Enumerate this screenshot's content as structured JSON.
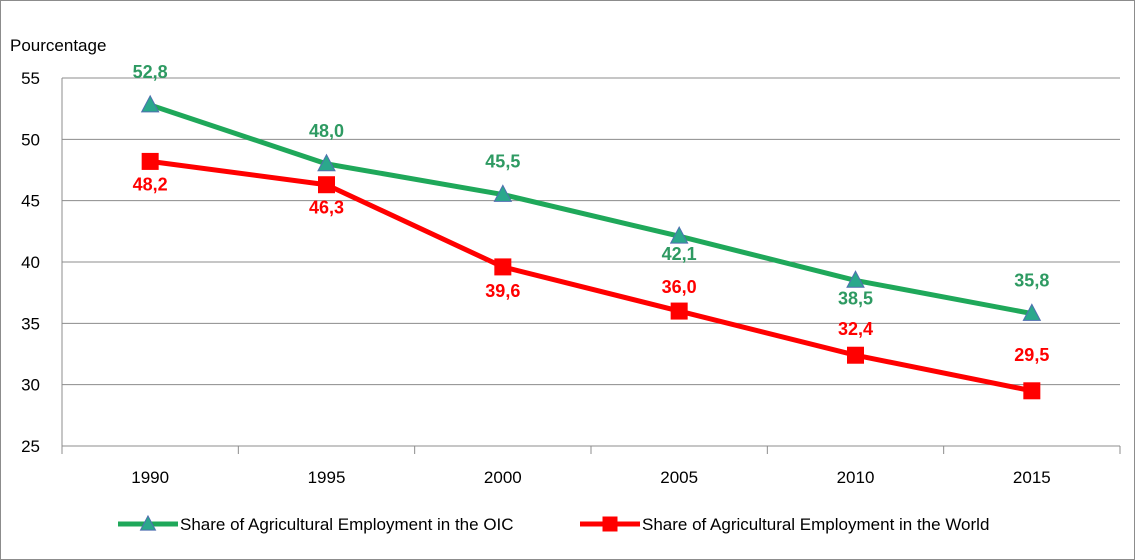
{
  "chart_data": {
    "type": "line",
    "ylabel": "Pourcentage",
    "xlabel": "",
    "categories": [
      "1990",
      "1995",
      "2000",
      "2005",
      "2010",
      "2015"
    ],
    "ylim": [
      25,
      55
    ],
    "yticks": [
      25,
      30,
      35,
      40,
      45,
      50,
      55
    ],
    "grid": true,
    "legend_position": "bottom",
    "series": [
      {
        "name": "Share of Agricultural Employment  in the OIC",
        "color": "#1fa85a",
        "marker": "triangle",
        "values": [
          52.8,
          48.0,
          45.5,
          42.1,
          38.5,
          35.8
        ],
        "labels": [
          "52,8",
          "48,0",
          "45,5",
          "42,1",
          "38,5",
          "35,8"
        ]
      },
      {
        "name": "Share of Agricultural Employment  in the World",
        "color": "#ff0000",
        "marker": "square",
        "values": [
          48.2,
          46.3,
          39.6,
          36.0,
          32.4,
          29.5
        ],
        "labels": [
          "48,2",
          "46,3",
          "39,6",
          "36,0",
          "32,4",
          "29,5"
        ]
      }
    ]
  }
}
